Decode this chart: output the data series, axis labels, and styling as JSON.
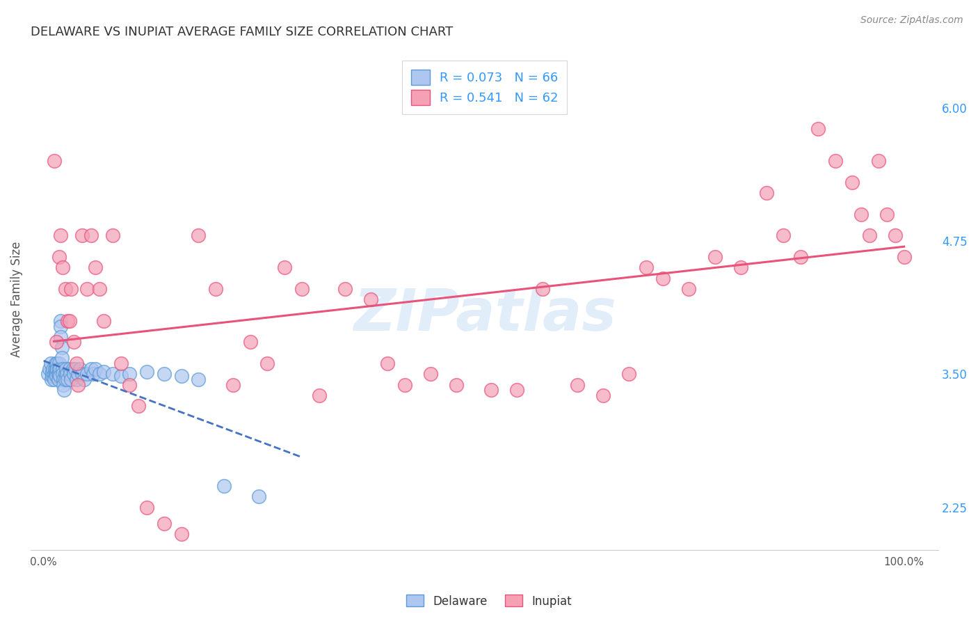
{
  "title": "DELAWARE VS INUPIAT AVERAGE FAMILY SIZE CORRELATION CHART",
  "source": "Source: ZipAtlas.com",
  "ylabel": "Average Family Size",
  "watermark": "ZIPatlas",
  "right_yticks": [
    2.25,
    3.5,
    4.75,
    6.0
  ],
  "right_yticklabels": [
    "2.25",
    "3.50",
    "4.75",
    "6.00"
  ],
  "ylim": [
    1.85,
    6.55
  ],
  "xlim": [
    -0.015,
    1.04
  ],
  "legend_r1": "R = 0.073   N = 66",
  "legend_r2": "R = 0.541   N = 62",
  "delaware_color": "#aec6f0",
  "inupiat_color": "#f5a0b5",
  "delaware_edge_color": "#5b9bd5",
  "inupiat_edge_color": "#e8537a",
  "delaware_line_color": "#4472c4",
  "inupiat_line_color": "#e8537a",
  "blue_text_color": "#3399ff",
  "background_color": "#ffffff",
  "grid_color": "#d9d9d9",
  "delaware_x": [
    0.005,
    0.007,
    0.008,
    0.009,
    0.01,
    0.01,
    0.01,
    0.011,
    0.012,
    0.012,
    0.013,
    0.014,
    0.014,
    0.015,
    0.015,
    0.015,
    0.016,
    0.016,
    0.017,
    0.017,
    0.018,
    0.018,
    0.018,
    0.019,
    0.019,
    0.02,
    0.02,
    0.02,
    0.021,
    0.021,
    0.022,
    0.022,
    0.023,
    0.023,
    0.024,
    0.025,
    0.025,
    0.026,
    0.027,
    0.028,
    0.03,
    0.031,
    0.032,
    0.034,
    0.035,
    0.037,
    0.038,
    0.04,
    0.042,
    0.045,
    0.047,
    0.05,
    0.055,
    0.058,
    0.06,
    0.065,
    0.07,
    0.08,
    0.09,
    0.1,
    0.12,
    0.14,
    0.16,
    0.18,
    0.21,
    0.25
  ],
  "delaware_y": [
    3.5,
    3.55,
    3.6,
    3.45,
    3.5,
    3.48,
    3.52,
    3.55,
    3.5,
    3.45,
    3.55,
    3.6,
    3.5,
    3.55,
    3.52,
    3.48,
    3.6,
    3.55,
    3.5,
    3.45,
    3.55,
    3.6,
    3.5,
    3.55,
    3.48,
    4.0,
    3.95,
    3.85,
    3.75,
    3.65,
    3.55,
    3.5,
    3.45,
    3.4,
    3.35,
    3.5,
    3.45,
    3.55,
    3.5,
    3.45,
    3.55,
    3.5,
    3.45,
    3.55,
    3.5,
    3.55,
    3.45,
    3.5,
    3.55,
    3.5,
    3.45,
    3.5,
    3.55,
    3.5,
    3.55,
    3.5,
    3.52,
    3.5,
    3.48,
    3.5,
    3.52,
    3.5,
    3.48,
    3.45,
    2.45,
    2.35
  ],
  "inupiat_x": [
    0.012,
    0.015,
    0.018,
    0.02,
    0.022,
    0.025,
    0.028,
    0.03,
    0.032,
    0.035,
    0.038,
    0.04,
    0.045,
    0.05,
    0.055,
    0.06,
    0.065,
    0.07,
    0.08,
    0.09,
    0.1,
    0.11,
    0.12,
    0.14,
    0.16,
    0.18,
    0.2,
    0.22,
    0.24,
    0.26,
    0.28,
    0.3,
    0.32,
    0.35,
    0.38,
    0.4,
    0.42,
    0.45,
    0.48,
    0.52,
    0.55,
    0.58,
    0.62,
    0.65,
    0.68,
    0.7,
    0.72,
    0.75,
    0.78,
    0.81,
    0.84,
    0.86,
    0.88,
    0.9,
    0.92,
    0.94,
    0.95,
    0.96,
    0.97,
    0.98,
    0.99,
    1.0
  ],
  "inupiat_y": [
    5.5,
    3.8,
    4.6,
    4.8,
    4.5,
    4.3,
    4.0,
    4.0,
    4.3,
    3.8,
    3.6,
    3.4,
    4.8,
    4.3,
    4.8,
    4.5,
    4.3,
    4.0,
    4.8,
    3.6,
    3.4,
    3.2,
    2.25,
    2.1,
    2.0,
    4.8,
    4.3,
    3.4,
    3.8,
    3.6,
    4.5,
    4.3,
    3.3,
    4.3,
    4.2,
    3.6,
    3.4,
    3.5,
    3.4,
    3.35,
    3.35,
    4.3,
    3.4,
    3.3,
    3.5,
    4.5,
    4.4,
    4.3,
    4.6,
    4.5,
    5.2,
    4.8,
    4.6,
    5.8,
    5.5,
    5.3,
    5.0,
    4.8,
    5.5,
    5.0,
    4.8,
    4.6
  ]
}
